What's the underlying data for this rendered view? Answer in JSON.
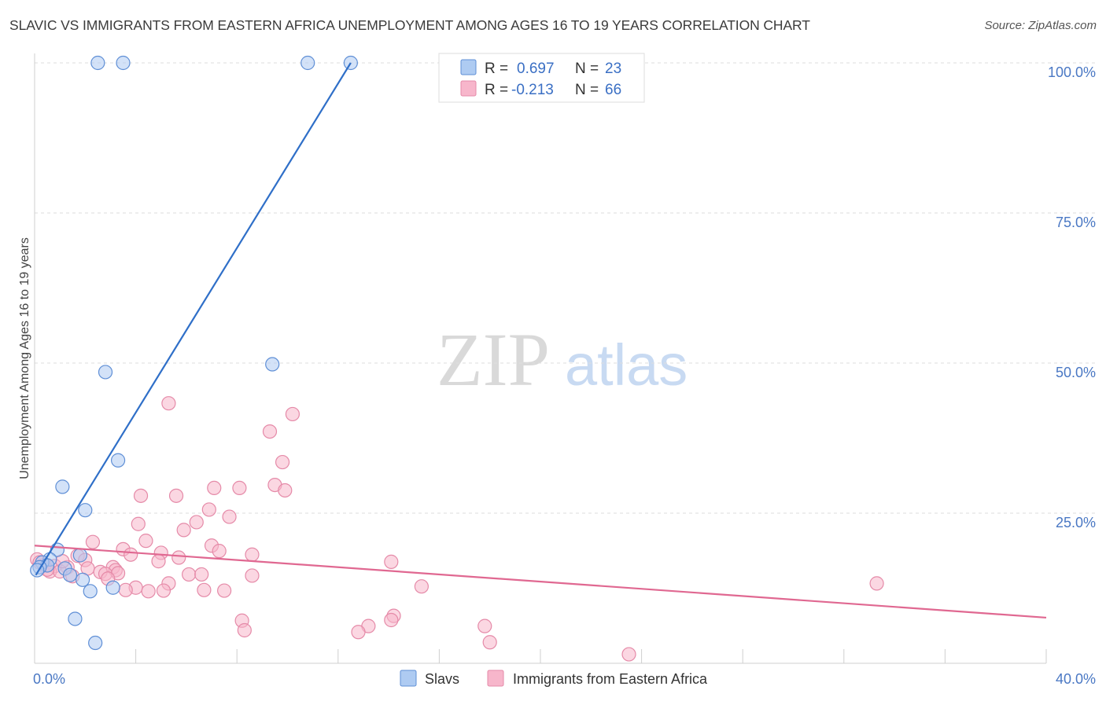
{
  "title": "SLAVIC VS IMMIGRANTS FROM EASTERN AFRICA UNEMPLOYMENT AMONG AGES 16 TO 19 YEARS CORRELATION CHART",
  "source": "Source: ZipAtlas.com",
  "watermark": {
    "zip": "ZIP",
    "atlas": "atlas"
  },
  "colors": {
    "slavs_fill": "#aecbf2",
    "slavs_stroke": "#5f8fd6",
    "slavs_line": "#2f6fc8",
    "imm_fill": "#f7b6cb",
    "imm_stroke": "#e58aa8",
    "imm_line": "#e06891"
  },
  "legend": {
    "rows": [
      {
        "r_label": "R =",
        "r_value": "0.697",
        "n_label": "N =",
        "n_value": "23"
      },
      {
        "r_label": "R =",
        "r_value": "-0.213",
        "n_label": "N =",
        "n_value": "66"
      }
    ]
  },
  "chart_data": {
    "type": "scatter",
    "title": "SLAVIC VS IMMIGRANTS FROM EASTERN AFRICA UNEMPLOYMENT AMONG AGES 16 TO 19 YEARS CORRELATION CHART",
    "xlabel": "",
    "ylabel": "Unemployment Among Ages 16 to 19 years",
    "xlim": [
      0,
      40
    ],
    "ylim": [
      0,
      100
    ],
    "x_tick_labels": [
      "0.0%",
      "40.0%"
    ],
    "y_tick_labels": [
      "100.0%",
      "75.0%",
      "50.0%",
      "25.0%"
    ],
    "y_tick_values": [
      100,
      75,
      50,
      25
    ],
    "grid": "horizontal dashed",
    "legend_position": "top-center",
    "series": [
      {
        "name": "Slavs",
        "r": 0.697,
        "n": 23,
        "trend": {
          "x": [
            0.05,
            12.5
          ],
          "y": [
            14.7,
            100
          ]
        },
        "points": [
          [
            2.5,
            100
          ],
          [
            3.5,
            100
          ],
          [
            10.8,
            100
          ],
          [
            12.5,
            100
          ],
          [
            9.4,
            49.8
          ],
          [
            2.8,
            48.5
          ],
          [
            3.3,
            33.8
          ],
          [
            1.1,
            29.4
          ],
          [
            2.0,
            25.5
          ],
          [
            0.9,
            18.9
          ],
          [
            1.8,
            18.0
          ],
          [
            0.6,
            17.3
          ],
          [
            0.3,
            16.8
          ],
          [
            0.5,
            16.3
          ],
          [
            0.2,
            16.0
          ],
          [
            1.2,
            15.8
          ],
          [
            0.1,
            15.5
          ],
          [
            1.4,
            14.7
          ],
          [
            1.9,
            13.9
          ],
          [
            3.1,
            12.6
          ],
          [
            2.2,
            12.0
          ],
          [
            1.6,
            7.4
          ],
          [
            2.4,
            3.4
          ]
        ]
      },
      {
        "name": "Immigrants from Eastern Africa",
        "r": -0.213,
        "n": 66,
        "trend": {
          "x": [
            0,
            40
          ],
          "y": [
            19.6,
            7.6
          ]
        },
        "points": [
          [
            5.3,
            43.3
          ],
          [
            10.2,
            41.5
          ],
          [
            9.3,
            38.6
          ],
          [
            9.8,
            33.5
          ],
          [
            9.5,
            29.7
          ],
          [
            7.1,
            29.2
          ],
          [
            8.1,
            29.2
          ],
          [
            9.9,
            28.8
          ],
          [
            4.2,
            27.9
          ],
          [
            5.6,
            27.9
          ],
          [
            6.9,
            25.6
          ],
          [
            7.7,
            24.4
          ],
          [
            4.1,
            23.2
          ],
          [
            6.4,
            23.5
          ],
          [
            5.9,
            22.2
          ],
          [
            4.4,
            20.4
          ],
          [
            2.3,
            20.2
          ],
          [
            7.0,
            19.6
          ],
          [
            3.5,
            19.0
          ],
          [
            7.3,
            18.7
          ],
          [
            5.0,
            18.4
          ],
          [
            3.8,
            18.1
          ],
          [
            8.6,
            18.1
          ],
          [
            1.7,
            17.9
          ],
          [
            5.7,
            17.6
          ],
          [
            0.1,
            17.3
          ],
          [
            2.0,
            17.2
          ],
          [
            4.9,
            17.0
          ],
          [
            14.1,
            16.9
          ],
          [
            0.4,
            16.4
          ],
          [
            0.8,
            16.2
          ],
          [
            1.3,
            16.0
          ],
          [
            3.1,
            16.0
          ],
          [
            2.1,
            15.8
          ],
          [
            3.2,
            15.5
          ],
          [
            0.6,
            15.3
          ],
          [
            1.0,
            15.3
          ],
          [
            2.6,
            15.2
          ],
          [
            2.8,
            14.9
          ],
          [
            3.3,
            15.0
          ],
          [
            6.1,
            14.8
          ],
          [
            6.6,
            14.8
          ],
          [
            8.6,
            14.6
          ],
          [
            1.5,
            14.5
          ],
          [
            2.9,
            14.1
          ],
          [
            5.3,
            13.3
          ],
          [
            4.0,
            12.6
          ],
          [
            15.3,
            12.8
          ],
          [
            33.3,
            13.3
          ],
          [
            3.6,
            12.2
          ],
          [
            4.5,
            12.0
          ],
          [
            5.1,
            12.1
          ],
          [
            6.7,
            12.2
          ],
          [
            7.5,
            12.1
          ],
          [
            0.2,
            16.8
          ],
          [
            1.1,
            17.0
          ],
          [
            14.2,
            7.9
          ],
          [
            14.1,
            7.2
          ],
          [
            8.2,
            7.1
          ],
          [
            17.8,
            6.2
          ],
          [
            13.2,
            6.2
          ],
          [
            8.3,
            5.5
          ],
          [
            12.8,
            5.2
          ],
          [
            18.0,
            3.5
          ],
          [
            23.5,
            1.5
          ],
          [
            0.5,
            15.6
          ]
        ]
      }
    ]
  }
}
